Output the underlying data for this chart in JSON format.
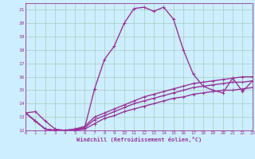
{
  "xlabel": "Windchill (Refroidissement éolien,°C)",
  "bg_color": "#cceeff",
  "grid_color": "#aaccbb",
  "line_color": "#993399",
  "xmin": 0,
  "xmax": 23,
  "ymin": 12,
  "ymax": 21,
  "series": [
    [
      13.3,
      13.4,
      12.7,
      12.1,
      12.0,
      12.1,
      12.2,
      15.1,
      17.3,
      18.3,
      20.0,
      21.1,
      21.2,
      20.9,
      21.2,
      20.3,
      18.0,
      16.2,
      15.3,
      15.0,
      14.8,
      15.9,
      14.9,
      15.7
    ],
    [
      13.3,
      12.7,
      12.1,
      12.0,
      12.0,
      12.1,
      12.3,
      13.0,
      13.3,
      13.6,
      13.9,
      14.2,
      14.5,
      14.7,
      14.9,
      15.1,
      15.3,
      15.5,
      15.6,
      15.7,
      15.8,
      15.9,
      16.0,
      16.0
    ],
    [
      13.3,
      12.7,
      12.1,
      12.0,
      12.0,
      12.0,
      12.2,
      12.8,
      13.1,
      13.4,
      13.7,
      14.0,
      14.2,
      14.4,
      14.6,
      14.8,
      15.0,
      15.2,
      15.3,
      15.4,
      15.5,
      15.6,
      15.6,
      15.7
    ],
    [
      13.3,
      12.7,
      12.1,
      12.0,
      12.0,
      12.0,
      12.1,
      12.5,
      12.9,
      13.1,
      13.4,
      13.6,
      13.8,
      14.0,
      14.2,
      14.4,
      14.5,
      14.7,
      14.8,
      14.9,
      15.0,
      15.0,
      15.1,
      15.2
    ]
  ]
}
